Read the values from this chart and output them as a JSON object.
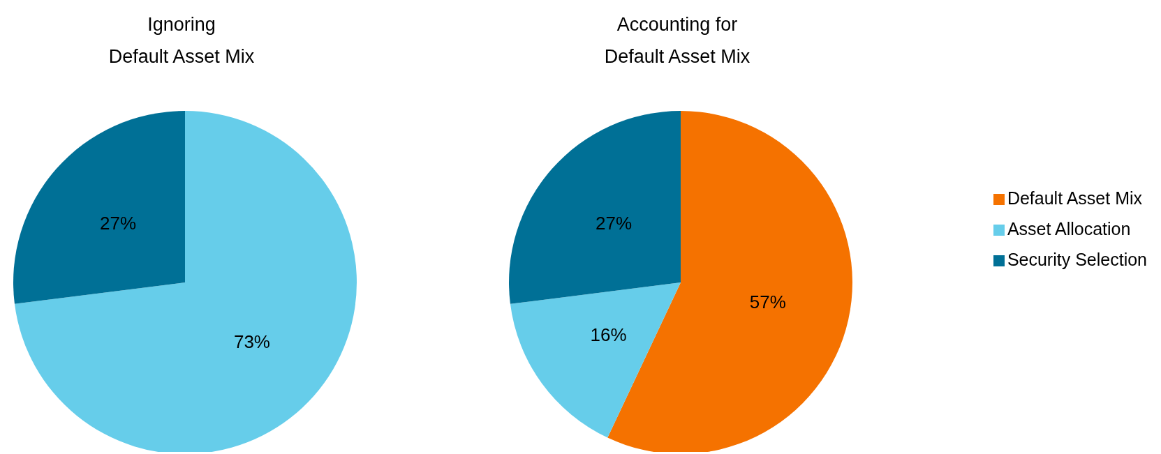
{
  "chart_data": [
    {
      "type": "pie",
      "title": "Ignoring\nDefault Asset Mix",
      "categories": [
        null,
        null
      ],
      "values": [
        73,
        27
      ],
      "colors": [
        "#66cdea",
        "#007096"
      ],
      "value_labels": [
        "73%",
        "27%"
      ],
      "legend": false
    },
    {
      "type": "pie",
      "title": "Accounting for\nDefault Asset Mix",
      "categories": [
        "Default Asset Mix",
        "Asset Allocation",
        "Security Selection"
      ],
      "values": [
        57,
        16,
        27
      ],
      "colors": [
        "#f57200",
        "#66cdea",
        "#007096"
      ],
      "value_labels": [
        "57%",
        "16%",
        "27%"
      ],
      "legend": "right"
    }
  ]
}
